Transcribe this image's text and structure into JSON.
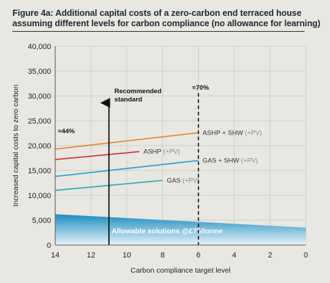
{
  "figure": {
    "title_line1": "Figure 4a: Additional capital costs of a zero-carbon end terraced house",
    "title_line2": "assuming different levels for carbon compliance (no allowance for learning)"
  },
  "chart_data": {
    "type": "line",
    "xlabel": "Carbon compliance target level",
    "ylabel": "Increased capital costs to zero carbon",
    "xlim": [
      14,
      0
    ],
    "ylim": [
      0,
      40000
    ],
    "x_ticks": [
      14,
      12,
      10,
      8,
      6,
      4,
      2,
      0
    ],
    "y_ticks": [
      0,
      5000,
      10000,
      15000,
      20000,
      25000,
      30000,
      35000,
      40000
    ],
    "y_tick_labels": [
      "0",
      "5,000",
      "10,000",
      "15,000",
      "20,000",
      "25,000",
      "30,000",
      "35,000",
      "40,000"
    ],
    "grid": true,
    "series": [
      {
        "name": "ASHP + SHW",
        "suffix": "(+PV)",
        "color": "#e8892f",
        "x": [
          14,
          6
        ],
        "y": [
          19300,
          22600
        ]
      },
      {
        "name": "ASHP",
        "suffix": "(+PV)",
        "color": "#d6333a",
        "x": [
          14,
          9.3
        ],
        "y": [
          17200,
          18800
        ]
      },
      {
        "name": "GAS + SHW",
        "suffix": "(+PV)",
        "color": "#2ba6d4",
        "x": [
          14,
          6
        ],
        "y": [
          13800,
          17000
        ]
      },
      {
        "name": "GAS",
        "suffix": "(+PV)",
        "color": "#2fb0b0",
        "x": [
          14,
          8
        ],
        "y": [
          11000,
          13000
        ]
      }
    ],
    "area": {
      "label": "Allowable solutions @£75/tonne",
      "x": [
        14,
        0
      ],
      "y": [
        6200,
        3500
      ],
      "color_top": "#1a8cbf",
      "color_bottom": "#e8f3f8"
    },
    "annotations": {
      "recommended": {
        "line1": "Recommended",
        "line2": "standard",
        "x": 11
      },
      "pct70": {
        "text": "≈70%",
        "x": 6
      },
      "pct44": {
        "text": "≈44%"
      }
    }
  }
}
